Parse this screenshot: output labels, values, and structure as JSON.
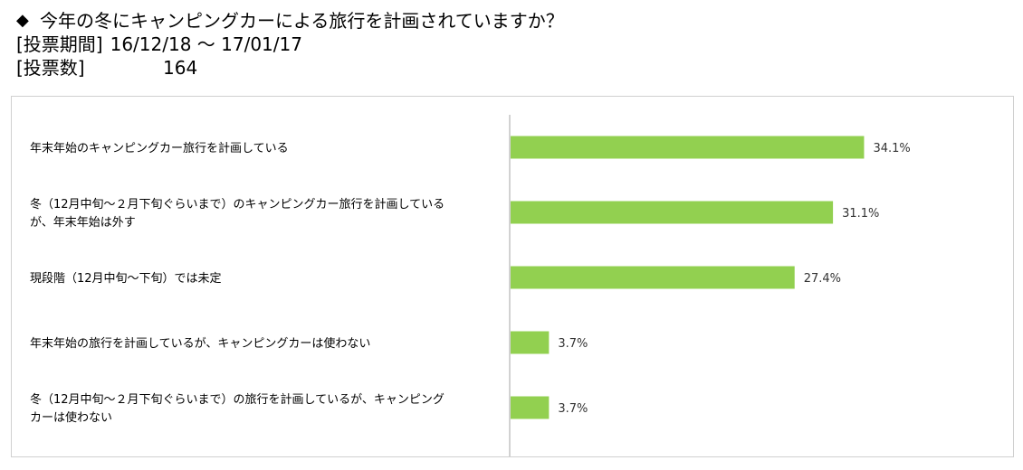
{
  "header": {
    "title": "今年の冬にキャンピングカーによる旅行を計画されていますか？",
    "period_label": "[投票期間]",
    "period_value": "16/12/18 〜 17/01/17",
    "votes_label": "[投票数]",
    "votes_value": "164"
  },
  "chart_data": {
    "type": "bar",
    "orientation": "horizontal",
    "title": "今年の冬にキャンピングカーによる旅行を計画されていますか？",
    "categories": [
      [
        "年末年始のキャンピングカー旅行を計画している"
      ],
      [
        "冬（12月中旬〜２月下旬ぐらいまで）のキャンピングカー旅行を計画している",
        "が、年末年始は外す"
      ],
      [
        "現段階（12月中旬〜下旬）では未定"
      ],
      [
        "年末年始の旅行を計画しているが、キャンピングカーは使わない"
      ],
      [
        "冬（12月中旬〜２月下旬ぐらいまで）の旅行を計画しているが、キャンピング",
        "カーは使わない"
      ]
    ],
    "values": [
      34.1,
      31.1,
      27.4,
      3.7,
      3.7
    ],
    "value_labels": [
      "34.1%",
      "31.1%",
      "27.4%",
      "3.7%",
      "3.7%"
    ],
    "unit": "%",
    "xlim": [
      0,
      40
    ],
    "grid": false,
    "legend": "none",
    "bar_color": "#92d050"
  }
}
